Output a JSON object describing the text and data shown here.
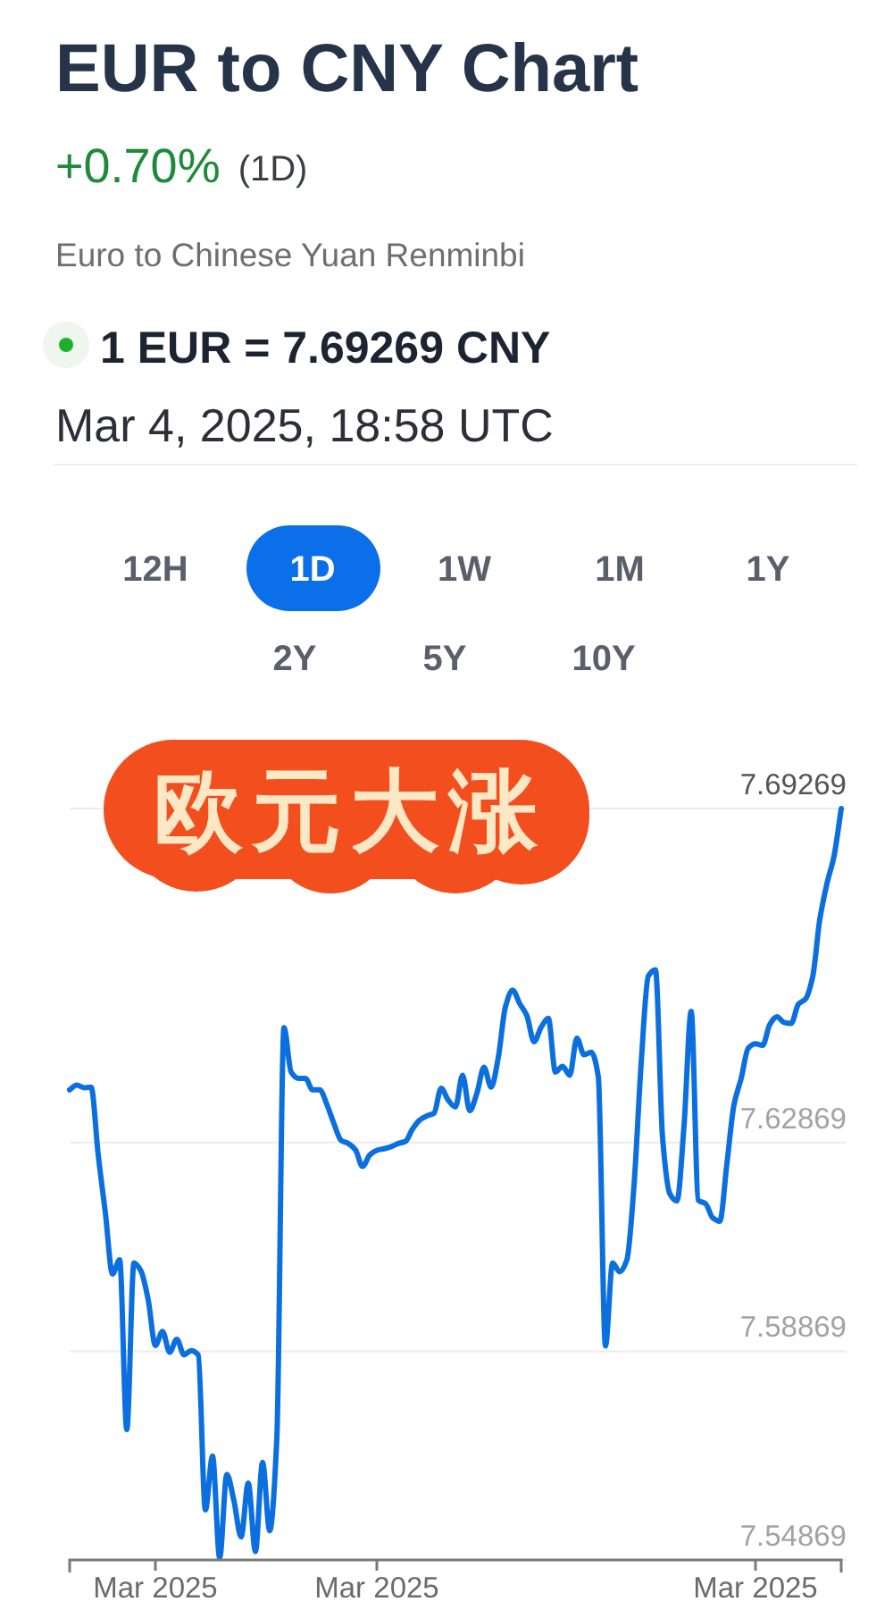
{
  "chart_data": {
    "type": "line",
    "title": "EUR to CNY Chart",
    "subtitle": "+0.70%",
    "annotations": [
      "(1D)",
      "Euro to Chinese Yuan Renminbi",
      "1 EUR = 7.69269 CNY",
      "Mar 4, 2025, 18:58 UTC",
      "12H",
      "1D",
      "1W",
      "1M",
      "1Y",
      "2Y",
      "5Y",
      "10Y",
      "欧元大涨"
    ],
    "categories": [
      null,
      null,
      null,
      null,
      null,
      null,
      null,
      null,
      null,
      null,
      null,
      null,
      "Mar 2025",
      null,
      null,
      null,
      null,
      null,
      null,
      null,
      null,
      null,
      null,
      null,
      null,
      null,
      null,
      null,
      null,
      null,
      null,
      null,
      null,
      null,
      null,
      null,
      null,
      null,
      null,
      null,
      null,
      null,
      null,
      "Mar 2025",
      null,
      null,
      null,
      null,
      null,
      null,
      null,
      null,
      null,
      null,
      null,
      null,
      null,
      null,
      null,
      null,
      null,
      null,
      null,
      null,
      null,
      null,
      null,
      null,
      null,
      null,
      null,
      null,
      null,
      null,
      null,
      null,
      null,
      null,
      null,
      null,
      null,
      null,
      null,
      null,
      null,
      null,
      null,
      null,
      null,
      null,
      null,
      null,
      null,
      null,
      null,
      null,
      "Mar 2025",
      null,
      null,
      null,
      null,
      null,
      null,
      null,
      null,
      null,
      null,
      null,
      null
    ],
    "series": [
      {
        "color": "#0b6fe0",
        "values": [
          7.6388,
          7.6397,
          7.6392,
          7.6393,
          7.6263,
          7.6152,
          7.6035,
          7.6062,
          7.5737,
          7.6056,
          7.604,
          7.5985,
          7.5898,
          7.5925,
          7.5885,
          7.591,
          7.588,
          7.5888,
          7.588,
          7.5583,
          7.5686,
          7.5491,
          7.5651,
          7.56,
          7.5531,
          7.5634,
          7.5503,
          7.5674,
          7.5543,
          7.572,
          7.6507,
          7.6422,
          7.641,
          7.641,
          7.6388,
          7.6388,
          7.636,
          7.6323,
          7.6291,
          7.6285,
          7.6273,
          7.6241,
          7.6263,
          7.6272,
          7.6275,
          7.6279,
          7.6285,
          7.6289,
          7.6313,
          7.633,
          7.6338,
          7.6343,
          7.6391,
          7.6368,
          7.6355,
          7.6416,
          7.6348,
          7.6381,
          7.6431,
          7.6393,
          7.645,
          7.6547,
          7.6579,
          7.6553,
          7.653,
          7.648,
          7.6508,
          7.6525,
          7.6422,
          7.6433,
          7.6416,
          7.6487,
          7.6455,
          7.646,
          7.6413,
          7.5897,
          7.6056,
          7.6039,
          7.6062,
          7.6205,
          7.6439,
          7.6606,
          7.6618,
          7.6295,
          7.6189,
          7.6175,
          7.6319,
          7.6538,
          7.6176,
          7.617,
          7.6143,
          7.6136,
          7.6246,
          7.636,
          7.641,
          7.6468,
          7.6476,
          7.6473,
          7.6513,
          7.6528,
          7.6517,
          7.6515,
          7.6552,
          7.6562,
          7.6604,
          7.6714,
          7.6783,
          7.6836,
          7.69269
        ]
      }
    ],
    "ylim": [
      7.54869,
      7.69269
    ],
    "yticks": [
      7.54869,
      7.58869,
      7.62869,
      7.69269
    ],
    "grid": "y"
  }
}
